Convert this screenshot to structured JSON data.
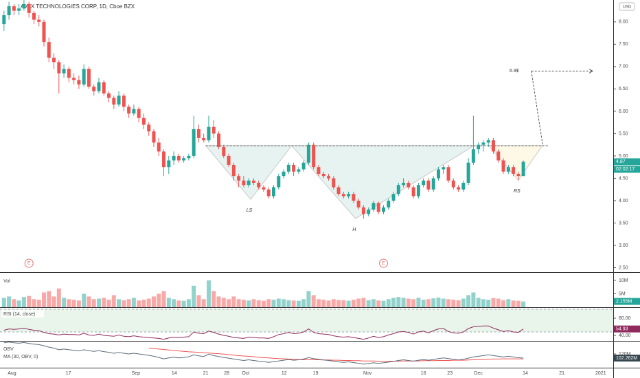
{
  "chart_data": {
    "type": "candlestick",
    "title": "AVAX TECHNOLOGIES CORP, 1D, Cboe BZX",
    "currency": "USD",
    "up_color": "#26a69a",
    "down_color": "#ef5350",
    "timer": "02:02:17",
    "xlim": [
      -0.8,
      122
    ],
    "xticks": [
      {
        "value": 1.6,
        "label": "Aug"
      },
      {
        "value": 12.9,
        "label": "17"
      },
      {
        "value": 26.4,
        "label": "Sep"
      },
      {
        "value": 34.1,
        "label": "14"
      },
      {
        "value": 40.4,
        "label": "21"
      },
      {
        "value": 44.6,
        "label": "28"
      },
      {
        "value": 48.4,
        "label": "Oct"
      },
      {
        "value": 56.1,
        "label": "12"
      },
      {
        "value": 62.4,
        "label": "19"
      },
      {
        "value": 72.8,
        "label": "Nov"
      },
      {
        "value": 84,
        "label": "16"
      },
      {
        "value": 89.3,
        "label": "23"
      },
      {
        "value": 95,
        "label": "Dec"
      },
      {
        "value": 104.4,
        "label": "14"
      },
      {
        "value": 111.7,
        "label": "21"
      },
      {
        "value": 119.5,
        "label": "2021"
      }
    ],
    "ylim": [
      2.4,
      8.49
    ],
    "yticks": [
      {
        "value": 8,
        "label": "8.00"
      },
      {
        "value": 7.5,
        "label": "7.50"
      },
      {
        "value": 7,
        "label": "7.00"
      },
      {
        "value": 6.5,
        "label": "6.50"
      },
      {
        "value": 6,
        "label": "6.00"
      },
      {
        "value": 5.5,
        "label": "5.50"
      },
      {
        "value": 5,
        "label": "5.00"
      },
      {
        "value": 4.5,
        "label": "4.50"
      },
      {
        "value": 4,
        "label": "4.00"
      },
      {
        "value": 3.5,
        "label": "3.50"
      },
      {
        "value": 3,
        "label": "3.00"
      },
      {
        "value": 2.5,
        "label": "2.50"
      }
    ],
    "candles": [
      [
        7.95,
        8.25,
        7.8,
        8.15
      ],
      [
        8.15,
        8.45,
        8.05,
        8.35
      ],
      [
        8.35,
        8.4,
        8.15,
        8.25
      ],
      [
        8.25,
        8.4,
        8.15,
        8.3
      ],
      [
        8.3,
        8.5,
        8.25,
        8.4
      ],
      [
        8.4,
        8.45,
        8.1,
        8.2
      ],
      [
        8.2,
        8.25,
        7.95,
        8.05
      ],
      [
        8.05,
        8.15,
        7.9,
        8.0
      ],
      [
        8.0,
        8.05,
        7.45,
        7.55
      ],
      [
        7.55,
        7.65,
        7.1,
        7.2
      ],
      [
        7.2,
        7.3,
        6.95,
        7.1
      ],
      [
        7.1,
        7.15,
        6.4,
        6.85
      ],
      [
        6.85,
        7.05,
        6.75,
        6.95
      ],
      [
        6.95,
        7.0,
        6.65,
        6.75
      ],
      [
        6.75,
        6.85,
        6.6,
        6.7
      ],
      [
        6.7,
        6.8,
        6.5,
        6.6
      ],
      [
        6.6,
        7.05,
        6.55,
        6.95
      ],
      [
        6.95,
        7.0,
        6.5,
        6.55
      ],
      [
        6.55,
        6.6,
        6.35,
        6.45
      ],
      [
        6.45,
        6.75,
        6.4,
        6.65
      ],
      [
        6.65,
        6.7,
        6.35,
        6.4
      ],
      [
        6.4,
        6.45,
        6.2,
        6.3
      ],
      [
        6.3,
        6.35,
        6.05,
        6.15
      ],
      [
        6.15,
        6.45,
        6.1,
        6.35
      ],
      [
        6.35,
        6.4,
        6.0,
        6.1
      ],
      [
        6.1,
        6.15,
        5.85,
        5.95
      ],
      [
        5.95,
        6.15,
        5.9,
        6.05
      ],
      [
        6.05,
        6.1,
        5.75,
        5.85
      ],
      [
        5.85,
        5.95,
        5.6,
        5.7
      ],
      [
        5.7,
        5.75,
        5.45,
        5.55
      ],
      [
        5.55,
        5.6,
        5.2,
        5.3
      ],
      [
        5.3,
        5.4,
        5.0,
        5.1
      ],
      [
        5.1,
        5.15,
        4.55,
        4.75
      ],
      [
        4.75,
        5.0,
        4.6,
        4.9
      ],
      [
        4.9,
        5.1,
        4.8,
        5.0
      ],
      [
        5.0,
        5.05,
        4.85,
        4.9
      ],
      [
        4.9,
        5.0,
        4.85,
        4.95
      ],
      [
        4.95,
        5.05,
        4.9,
        5.0
      ],
      [
        5.0,
        5.9,
        4.95,
        5.6
      ],
      [
        5.6,
        5.7,
        5.3,
        5.4
      ],
      [
        5.4,
        5.5,
        5.3,
        5.35
      ],
      [
        5.35,
        5.9,
        5.3,
        5.65
      ],
      [
        5.65,
        5.8,
        5.4,
        5.5
      ],
      [
        5.5,
        5.55,
        5.15,
        5.2
      ],
      [
        5.2,
        5.25,
        4.95,
        5.0
      ],
      [
        5.0,
        5.05,
        4.75,
        4.8
      ],
      [
        4.8,
        4.85,
        4.45,
        4.55
      ],
      [
        4.55,
        4.6,
        4.3,
        4.45
      ],
      [
        4.45,
        4.55,
        4.3,
        4.35
      ],
      [
        4.35,
        4.5,
        4.3,
        4.45
      ],
      [
        4.45,
        4.5,
        4.35,
        4.4
      ],
      [
        4.4,
        4.45,
        4.25,
        4.3
      ],
      [
        4.3,
        4.35,
        4.2,
        4.25
      ],
      [
        4.25,
        4.3,
        4.05,
        4.1
      ],
      [
        4.1,
        4.35,
        4.05,
        4.3
      ],
      [
        4.3,
        4.6,
        4.25,
        4.55
      ],
      [
        4.55,
        4.7,
        4.5,
        4.65
      ],
      [
        4.65,
        4.85,
        4.6,
        4.8
      ],
      [
        4.8,
        4.85,
        4.55,
        4.65
      ],
      [
        4.65,
        4.75,
        4.6,
        4.7
      ],
      [
        4.7,
        4.9,
        4.65,
        4.85
      ],
      [
        4.85,
        5.3,
        4.8,
        5.25
      ],
      [
        5.25,
        5.3,
        4.7,
        4.75
      ],
      [
        4.75,
        4.8,
        4.55,
        4.6
      ],
      [
        4.6,
        4.65,
        4.5,
        4.55
      ],
      [
        4.55,
        4.6,
        4.45,
        4.5
      ],
      [
        4.5,
        4.55,
        4.25,
        4.3
      ],
      [
        4.3,
        4.35,
        4.1,
        4.15
      ],
      [
        4.15,
        4.2,
        4.05,
        4.1
      ],
      [
        4.1,
        4.2,
        4.05,
        4.15
      ],
      [
        4.15,
        4.2,
        3.95,
        4.0
      ],
      [
        4.0,
        4.05,
        3.8,
        3.85
      ],
      [
        3.85,
        3.9,
        3.6,
        3.7
      ],
      [
        3.7,
        3.85,
        3.65,
        3.8
      ],
      [
        3.8,
        4.0,
        3.75,
        3.95
      ],
      [
        3.95,
        3.98,
        3.7,
        3.75
      ],
      [
        3.75,
        3.9,
        3.7,
        3.85
      ],
      [
        3.85,
        4.05,
        3.8,
        4.0
      ],
      [
        4.0,
        4.2,
        3.95,
        4.15
      ],
      [
        4.15,
        4.4,
        4.1,
        4.35
      ],
      [
        4.35,
        4.5,
        4.3,
        4.4
      ],
      [
        4.4,
        4.45,
        4.25,
        4.3
      ],
      [
        4.3,
        4.35,
        4.05,
        4.1
      ],
      [
        4.1,
        4.4,
        4.05,
        4.35
      ],
      [
        4.35,
        4.5,
        4.3,
        4.45
      ],
      [
        4.45,
        4.5,
        4.2,
        4.25
      ],
      [
        4.25,
        4.55,
        4.2,
        4.5
      ],
      [
        4.5,
        4.75,
        4.45,
        4.7
      ],
      [
        4.7,
        4.8,
        4.6,
        4.75
      ],
      [
        4.75,
        4.8,
        4.4,
        4.45
      ],
      [
        4.45,
        4.5,
        4.25,
        4.3
      ],
      [
        4.3,
        4.35,
        4.2,
        4.25
      ],
      [
        4.25,
        4.45,
        4.2,
        4.4
      ],
      [
        4.4,
        4.95,
        4.35,
        4.85
      ],
      [
        4.85,
        5.9,
        4.8,
        5.15
      ],
      [
        5.15,
        5.3,
        5.05,
        5.25
      ],
      [
        5.25,
        5.35,
        5.1,
        5.3
      ],
      [
        5.3,
        5.4,
        5.2,
        5.35
      ],
      [
        5.35,
        5.4,
        5.05,
        5.1
      ],
      [
        5.1,
        5.15,
        4.85,
        4.9
      ],
      [
        4.9,
        4.95,
        4.6,
        4.65
      ],
      [
        4.65,
        4.8,
        4.6,
        4.75
      ],
      [
        4.75,
        4.8,
        4.55,
        4.6
      ],
      [
        4.6,
        4.65,
        4.45,
        4.55
      ],
      [
        4.55,
        4.9,
        4.55,
        4.87
      ]
    ],
    "earnings": {
      "label": "E",
      "x": [
        5,
        76
      ]
    },
    "pattern": {
      "points": [
        [
          40.4,
          5.23
        ],
        [
          49.4,
          4.03
        ],
        [
          57.6,
          5.23
        ],
        [
          70.4,
          3.6
        ],
        [
          94.1,
          5.23
        ],
        [
          97.1,
          5.23
        ],
        [
          103,
          4.46
        ],
        [
          107.8,
          5.23
        ]
      ],
      "neckline": 5.23,
      "shoulder_labels": [
        "LS",
        "H",
        "RS"
      ],
      "target": {
        "value": 6.9,
        "label": "6.9$"
      }
    },
    "volume": {
      "label": "Vol",
      "ylim": [
        0,
        12.8
      ],
      "yticks": [
        {
          "value": 10,
          "label": "10M"
        },
        {
          "value": 5,
          "label": "5M"
        }
      ],
      "last_label": "2.155M",
      "values": [
        3.5,
        4.0,
        3.0,
        2.5,
        3.8,
        4.2,
        3.0,
        2.8,
        5.5,
        6.0,
        4.0,
        7.0,
        3.5,
        3.0,
        2.8,
        2.5,
        5.0,
        4.0,
        3.0,
        3.2,
        3.5,
        2.8,
        4.5,
        3.0,
        2.6,
        3.0,
        3.5,
        2.5,
        2.8,
        3.2,
        4.0,
        5.0,
        6.0,
        3.5,
        3.0,
        2.5,
        2.4,
        3.0,
        8.0,
        4.5,
        3.0,
        10.0,
        6.0,
        4.0,
        3.5,
        3.0,
        4.0,
        3.0,
        2.8,
        2.5,
        3.0,
        2.6,
        2.4,
        3.0,
        2.8,
        3.2,
        3.0,
        2.6,
        2.5,
        2.4,
        3.0,
        6.0,
        4.5,
        3.0,
        2.8,
        2.5,
        3.0,
        2.7,
        2.6,
        2.4,
        2.8,
        3.2,
        3.5,
        2.6,
        3.0,
        2.5,
        2.4,
        3.0,
        3.5,
        3.8,
        3.5,
        3.2,
        3.0,
        3.5,
        2.8,
        3.0,
        3.3,
        3.6,
        3.2,
        3.0,
        2.8,
        2.6,
        3.2,
        4.5,
        5.5,
        3.5,
        3.0,
        2.8,
        3.4,
        3.2,
        2.6,
        3.0,
        2.5,
        2.4,
        2.155
      ]
    },
    "rsi": {
      "label": "RSI (14, close)",
      "color": "#8e2a5c",
      "ylim": [
        27.2,
        104
      ],
      "yticks": [
        {
          "value": 80,
          "label": "80.00"
        },
        {
          "value": 40,
          "label": "40.00"
        }
      ],
      "values": [
        52,
        55,
        54,
        55,
        57,
        54,
        52,
        51,
        47,
        44,
        43,
        41,
        43,
        42,
        42,
        41,
        45,
        41,
        40,
        43,
        40,
        39,
        38,
        41,
        38,
        37,
        39,
        37,
        36,
        35,
        34,
        33,
        31,
        34,
        36,
        35,
        36,
        37,
        48,
        45,
        44,
        50,
        47,
        43,
        40,
        38,
        35,
        34,
        33,
        36,
        35,
        34,
        34,
        33,
        37,
        42,
        44,
        47,
        44,
        45,
        48,
        55,
        47,
        44,
        43,
        42,
        39,
        37,
        36,
        37,
        35,
        33,
        31,
        34,
        38,
        35,
        37,
        41,
        44,
        48,
        49,
        47,
        43,
        48,
        50,
        46,
        51,
        55,
        56,
        49,
        46,
        45,
        48,
        56,
        60,
        61,
        62,
        62,
        57,
        53,
        49,
        51,
        48,
        47,
        54.93
      ]
    },
    "obv": {
      "label": "OBV",
      "ma_label": "MA (30, OBV, 0)",
      "color": "#5b6b7a",
      "ma_color": "#ef5350",
      "ylim": [
        61,
        173
      ],
      "yticks": [
        {
          "value": 120,
          "label": "120M"
        }
      ],
      "last_label": "102.262M",
      "values": [
        168,
        171,
        168,
        166,
        169,
        165,
        162,
        160,
        155,
        149,
        145,
        138,
        141,
        138,
        136,
        133,
        138,
        134,
        131,
        134,
        130,
        127,
        123,
        126,
        123,
        120,
        123,
        120,
        117,
        114,
        110,
        105,
        99,
        103,
        106,
        103,
        105,
        108,
        116,
        112,
        109,
        119,
        113,
        109,
        105,
        102,
        98,
        95,
        92,
        95,
        92,
        89,
        87,
        84,
        87,
        90,
        93,
        96,
        93,
        95,
        98,
        104,
        100,
        97,
        94,
        92,
        89,
        86,
        84,
        86,
        83,
        80,
        76,
        79,
        82,
        80,
        82,
        85,
        88,
        92,
        95,
        92,
        89,
        93,
        96,
        93,
        96,
        100,
        103,
        100,
        97,
        94,
        97,
        102,
        107,
        110,
        113,
        116,
        113,
        110,
        107,
        110,
        107,
        104,
        102.262
      ],
      "ma": [
        null,
        null,
        null,
        null,
        null,
        null,
        null,
        null,
        null,
        null,
        null,
        null,
        null,
        null,
        null,
        null,
        null,
        null,
        null,
        null,
        null,
        null,
        null,
        null,
        null,
        null,
        null,
        null,
        null,
        145,
        143,
        141,
        139,
        137,
        135,
        133,
        131,
        129,
        128,
        127,
        125,
        124,
        122,
        121,
        119,
        117,
        115,
        113,
        111,
        110,
        108,
        106,
        104,
        103,
        101,
        100,
        99,
        98,
        97,
        96,
        95,
        95,
        95,
        95,
        94,
        94,
        93,
        93,
        92,
        92,
        91,
        91,
        90,
        90,
        90,
        89,
        89,
        89,
        89,
        89,
        90,
        90,
        90,
        90,
        91,
        91,
        91,
        92,
        92,
        92,
        93,
        93,
        93,
        94,
        95,
        96,
        96,
        97,
        98,
        98,
        99,
        99,
        99,
        99,
        98.4
      ]
    }
  }
}
